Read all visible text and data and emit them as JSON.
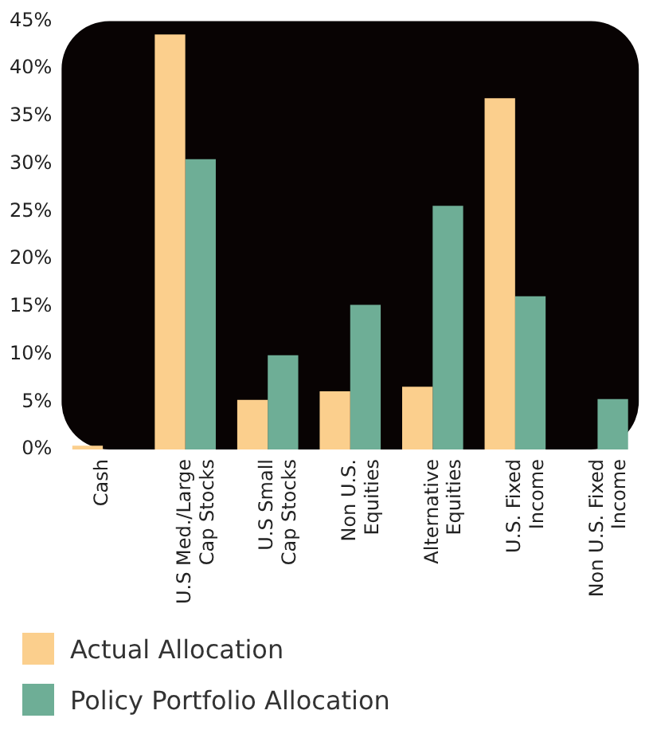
{
  "chart_data": {
    "type": "bar",
    "categories": [
      "Cash",
      "U.S Med./Large\nCap Stocks",
      "U.S Small\nCap Stocks",
      "Non U.S.\nEquities",
      "Alternative\nEquities",
      "U.S. Fixed\nIncome",
      "Non U.S. Fixed\nIncome"
    ],
    "series": [
      {
        "name": "Actual Allocation",
        "color": "#fbcf8d",
        "values": [
          0.4,
          43.6,
          5.2,
          6.1,
          6.6,
          36.9,
          0
        ]
      },
      {
        "name": "Policy Portfolio Allocation",
        "color": "#6eae96",
        "values": [
          0,
          30.5,
          9.9,
          15.2,
          25.6,
          16.1,
          5.3
        ]
      }
    ],
    "ylim": [
      0,
      45
    ],
    "yticks": [
      {
        "value": 0,
        "label": "0%"
      },
      {
        "value": 5,
        "label": "5%"
      },
      {
        "value": 10,
        "label": "10%"
      },
      {
        "value": 15,
        "label": "15%"
      },
      {
        "value": 20,
        "label": "20%"
      },
      {
        "value": 25,
        "label": "25%"
      },
      {
        "value": 30,
        "label": "30%"
      },
      {
        "value": 35,
        "label": "35%"
      },
      {
        "value": 40,
        "label": "40%"
      },
      {
        "value": 45,
        "label": "45%"
      }
    ],
    "grid": false,
    "legend": "bottom"
  }
}
